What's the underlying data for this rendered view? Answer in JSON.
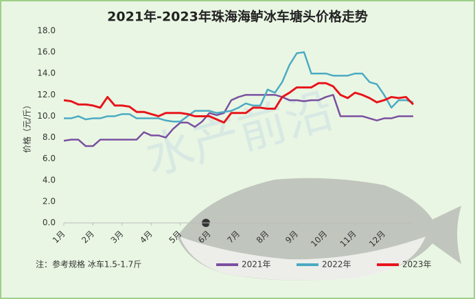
{
  "chart_data": {
    "type": "line",
    "title": "2021年-2023年珠海海鲈冰车塘头价格走势",
    "ylabel": "价格（元/斤）",
    "note": "注：参考规格  冰车1.5-1.7斤",
    "watermark": "水产前沿",
    "x": [
      1,
      1.25,
      1.5,
      1.75,
      2,
      2.25,
      2.5,
      2.75,
      3,
      3.25,
      3.5,
      3.75,
      4,
      4.25,
      4.5,
      4.75,
      5,
      5.25,
      5.5,
      5.75,
      6,
      6.25,
      6.5,
      6.75,
      7,
      7.25,
      7.5,
      7.75,
      8,
      8.25,
      8.5,
      8.75,
      9,
      9.25,
      9.5,
      9.75,
      10,
      10.25,
      10.5,
      10.75,
      11,
      11.25,
      11.5,
      11.75,
      12,
      12.25,
      12.5,
      12.75,
      13
    ],
    "xlim": [
      1,
      13
    ],
    "xticks": [
      {
        "value": 1,
        "label": "1月"
      },
      {
        "value": 2,
        "label": "2月"
      },
      {
        "value": 3,
        "label": "3月"
      },
      {
        "value": 4,
        "label": "4月"
      },
      {
        "value": 5,
        "label": "5月"
      },
      {
        "value": 6,
        "label": "6月"
      },
      {
        "value": 7,
        "label": "7月"
      },
      {
        "value": 8,
        "label": "8月"
      },
      {
        "value": 9,
        "label": "9月"
      },
      {
        "value": 10,
        "label": "10月"
      },
      {
        "value": 11,
        "label": "11月"
      },
      {
        "value": 12,
        "label": "12月"
      }
    ],
    "ylim": [
      0,
      18
    ],
    "yticks": [
      {
        "value": 0,
        "label": "0.0"
      },
      {
        "value": 2,
        "label": "2.0"
      },
      {
        "value": 4,
        "label": "4.0"
      },
      {
        "value": 6,
        "label": "6.0"
      },
      {
        "value": 8,
        "label": "8.0"
      },
      {
        "value": 10,
        "label": "10.0"
      },
      {
        "value": 12,
        "label": "12.0"
      },
      {
        "value": 14,
        "label": "14.0"
      },
      {
        "value": 16,
        "label": "16.0"
      },
      {
        "value": 18,
        "label": "18.0"
      }
    ],
    "grid": false,
    "legend": "bottom",
    "series": [
      {
        "name": "2021年",
        "color": "#7a4fa0",
        "values": [
          7.7,
          7.8,
          7.8,
          7.2,
          7.2,
          7.8,
          7.8,
          7.8,
          7.8,
          7.8,
          7.8,
          8.5,
          8.2,
          8.2,
          8.0,
          8.8,
          9.4,
          9.4,
          9.0,
          9.5,
          10.3,
          10.1,
          10.3,
          11.5,
          11.8,
          12.0,
          12.0,
          12.0,
          12.0,
          12.0,
          11.8,
          11.5,
          11.5,
          11.4,
          11.5,
          11.5,
          11.8,
          12.0,
          10.0,
          10.0,
          10.0,
          10.0,
          9.8,
          9.6,
          9.8,
          9.8,
          10.0,
          10.0,
          10.0
        ]
      },
      {
        "name": "2022年",
        "color": "#4aaac4",
        "values": [
          9.8,
          9.8,
          10.0,
          9.7,
          9.8,
          9.8,
          10.0,
          10.0,
          10.2,
          10.2,
          9.8,
          9.8,
          9.8,
          9.8,
          9.6,
          9.5,
          9.5,
          10.0,
          10.5,
          10.5,
          10.5,
          10.3,
          10.4,
          10.5,
          10.8,
          11.2,
          11.0,
          11.0,
          12.5,
          12.2,
          13.2,
          14.8,
          15.9,
          16.0,
          14.0,
          14.0,
          14.0,
          13.8,
          13.8,
          13.8,
          14.0,
          14.0,
          13.2,
          13.0,
          12.0,
          10.8,
          11.5,
          11.5,
          11.3
        ]
      },
      {
        "name": "2023年",
        "color": "#e8141b",
        "values": [
          11.5,
          11.4,
          11.1,
          11.1,
          11.0,
          10.8,
          11.8,
          11.0,
          11.0,
          10.9,
          10.4,
          10.4,
          10.2,
          10.0,
          10.3,
          10.3,
          10.3,
          10.2,
          10.0,
          10.0,
          10.0,
          9.7,
          9.4,
          10.3,
          10.3,
          10.3,
          10.8,
          10.8,
          10.7,
          10.7,
          11.8,
          12.2,
          12.7,
          12.7,
          12.7,
          13.1,
          13.1,
          12.8,
          12.0,
          11.7,
          12.2,
          12.0,
          11.7,
          11.3,
          11.5,
          11.8,
          11.7,
          11.8,
          11.1
        ]
      }
    ]
  }
}
